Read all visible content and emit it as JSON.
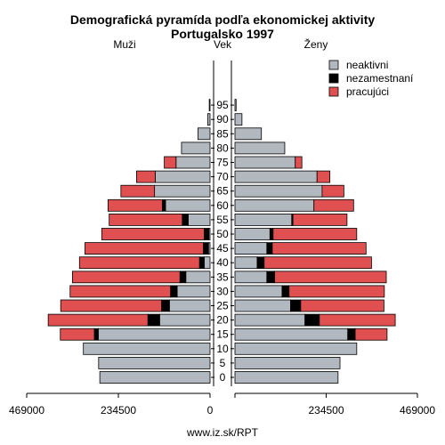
{
  "chart_data": {
    "type": "bar",
    "title": "Demografická pyramída podľa ekonomickej aktivity",
    "subtitle": "Portugalsko 1997",
    "left_label": "Muži",
    "center_label": "Vek",
    "right_label": "Ženy",
    "age_groups": [
      "0",
      "5",
      "10",
      "15",
      "20",
      "25",
      "30",
      "35",
      "40",
      "45",
      "50",
      "55",
      "60",
      "65",
      "70",
      "75",
      "80",
      "85",
      "90",
      "95"
    ],
    "series": [
      {
        "name": "neaktivni",
        "color": "#b2b8bf",
        "male": [
          282000,
          285000,
          324000,
          286000,
          129000,
          104000,
          84000,
          62000,
          15000,
          4000,
          3000,
          56000,
          114000,
          142000,
          140000,
          87000,
          73000,
          31000,
          6000,
          2000
        ],
        "female": [
          265000,
          270000,
          313000,
          290000,
          180000,
          143000,
          121000,
          82000,
          57000,
          82000,
          90000,
          146000,
          203000,
          224000,
          211000,
          155000,
          128000,
          68000,
          18000,
          3000
        ]
      },
      {
        "name": "nezamestnaní",
        "color": "#000000",
        "male": [
          0,
          0,
          0,
          10000,
          30000,
          20000,
          17000,
          15000,
          12000,
          13000,
          12000,
          15000,
          8000,
          0,
          0,
          0,
          0,
          0,
          0,
          0
        ],
        "female": [
          0,
          0,
          0,
          19000,
          37000,
          26000,
          18000,
          20000,
          18000,
          14000,
          8000,
          3000,
          0,
          0,
          0,
          0,
          0,
          0,
          0,
          0
        ],
        "display_name": "nezamestnaní"
      },
      {
        "name": "pracujúci",
        "color": "#e05050",
        "male": [
          0,
          0,
          0,
          87000,
          255000,
          258000,
          257000,
          275000,
          307000,
          303000,
          262000,
          187000,
          139000,
          86000,
          48000,
          30000,
          0,
          0,
          0,
          0
        ],
        "female": [
          0,
          0,
          0,
          82000,
          195000,
          214000,
          245000,
          287000,
          276000,
          241000,
          215000,
          139000,
          102000,
          56000,
          33000,
          17000,
          0,
          0,
          0,
          0
        ]
      }
    ],
    "legend_labels": [
      "neaktivni",
      "nezamestnaní",
      "pracujúci"
    ],
    "xlim": [
      0,
      469000
    ],
    "x_ticks_left": [
      "469000",
      "234500",
      "0"
    ],
    "x_ticks_right": [
      "234500",
      "469000"
    ],
    "legend_position": "top-right"
  },
  "footer": "www.iz.sk/RPT"
}
